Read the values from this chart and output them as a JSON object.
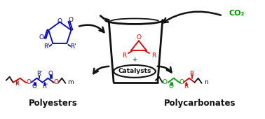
{
  "bg_color": "#ffffff",
  "red": "#dd0000",
  "blue": "#0000cc",
  "green": "#009900",
  "black": "#111111",
  "title_polyesters": "Polyesters",
  "title_polycarbonates": "Polycarbonates",
  "co2_label": "CO₂",
  "catalysts_label": "Catalysts",
  "fig_w": 3.78,
  "fig_h": 1.7,
  "dpi": 100
}
